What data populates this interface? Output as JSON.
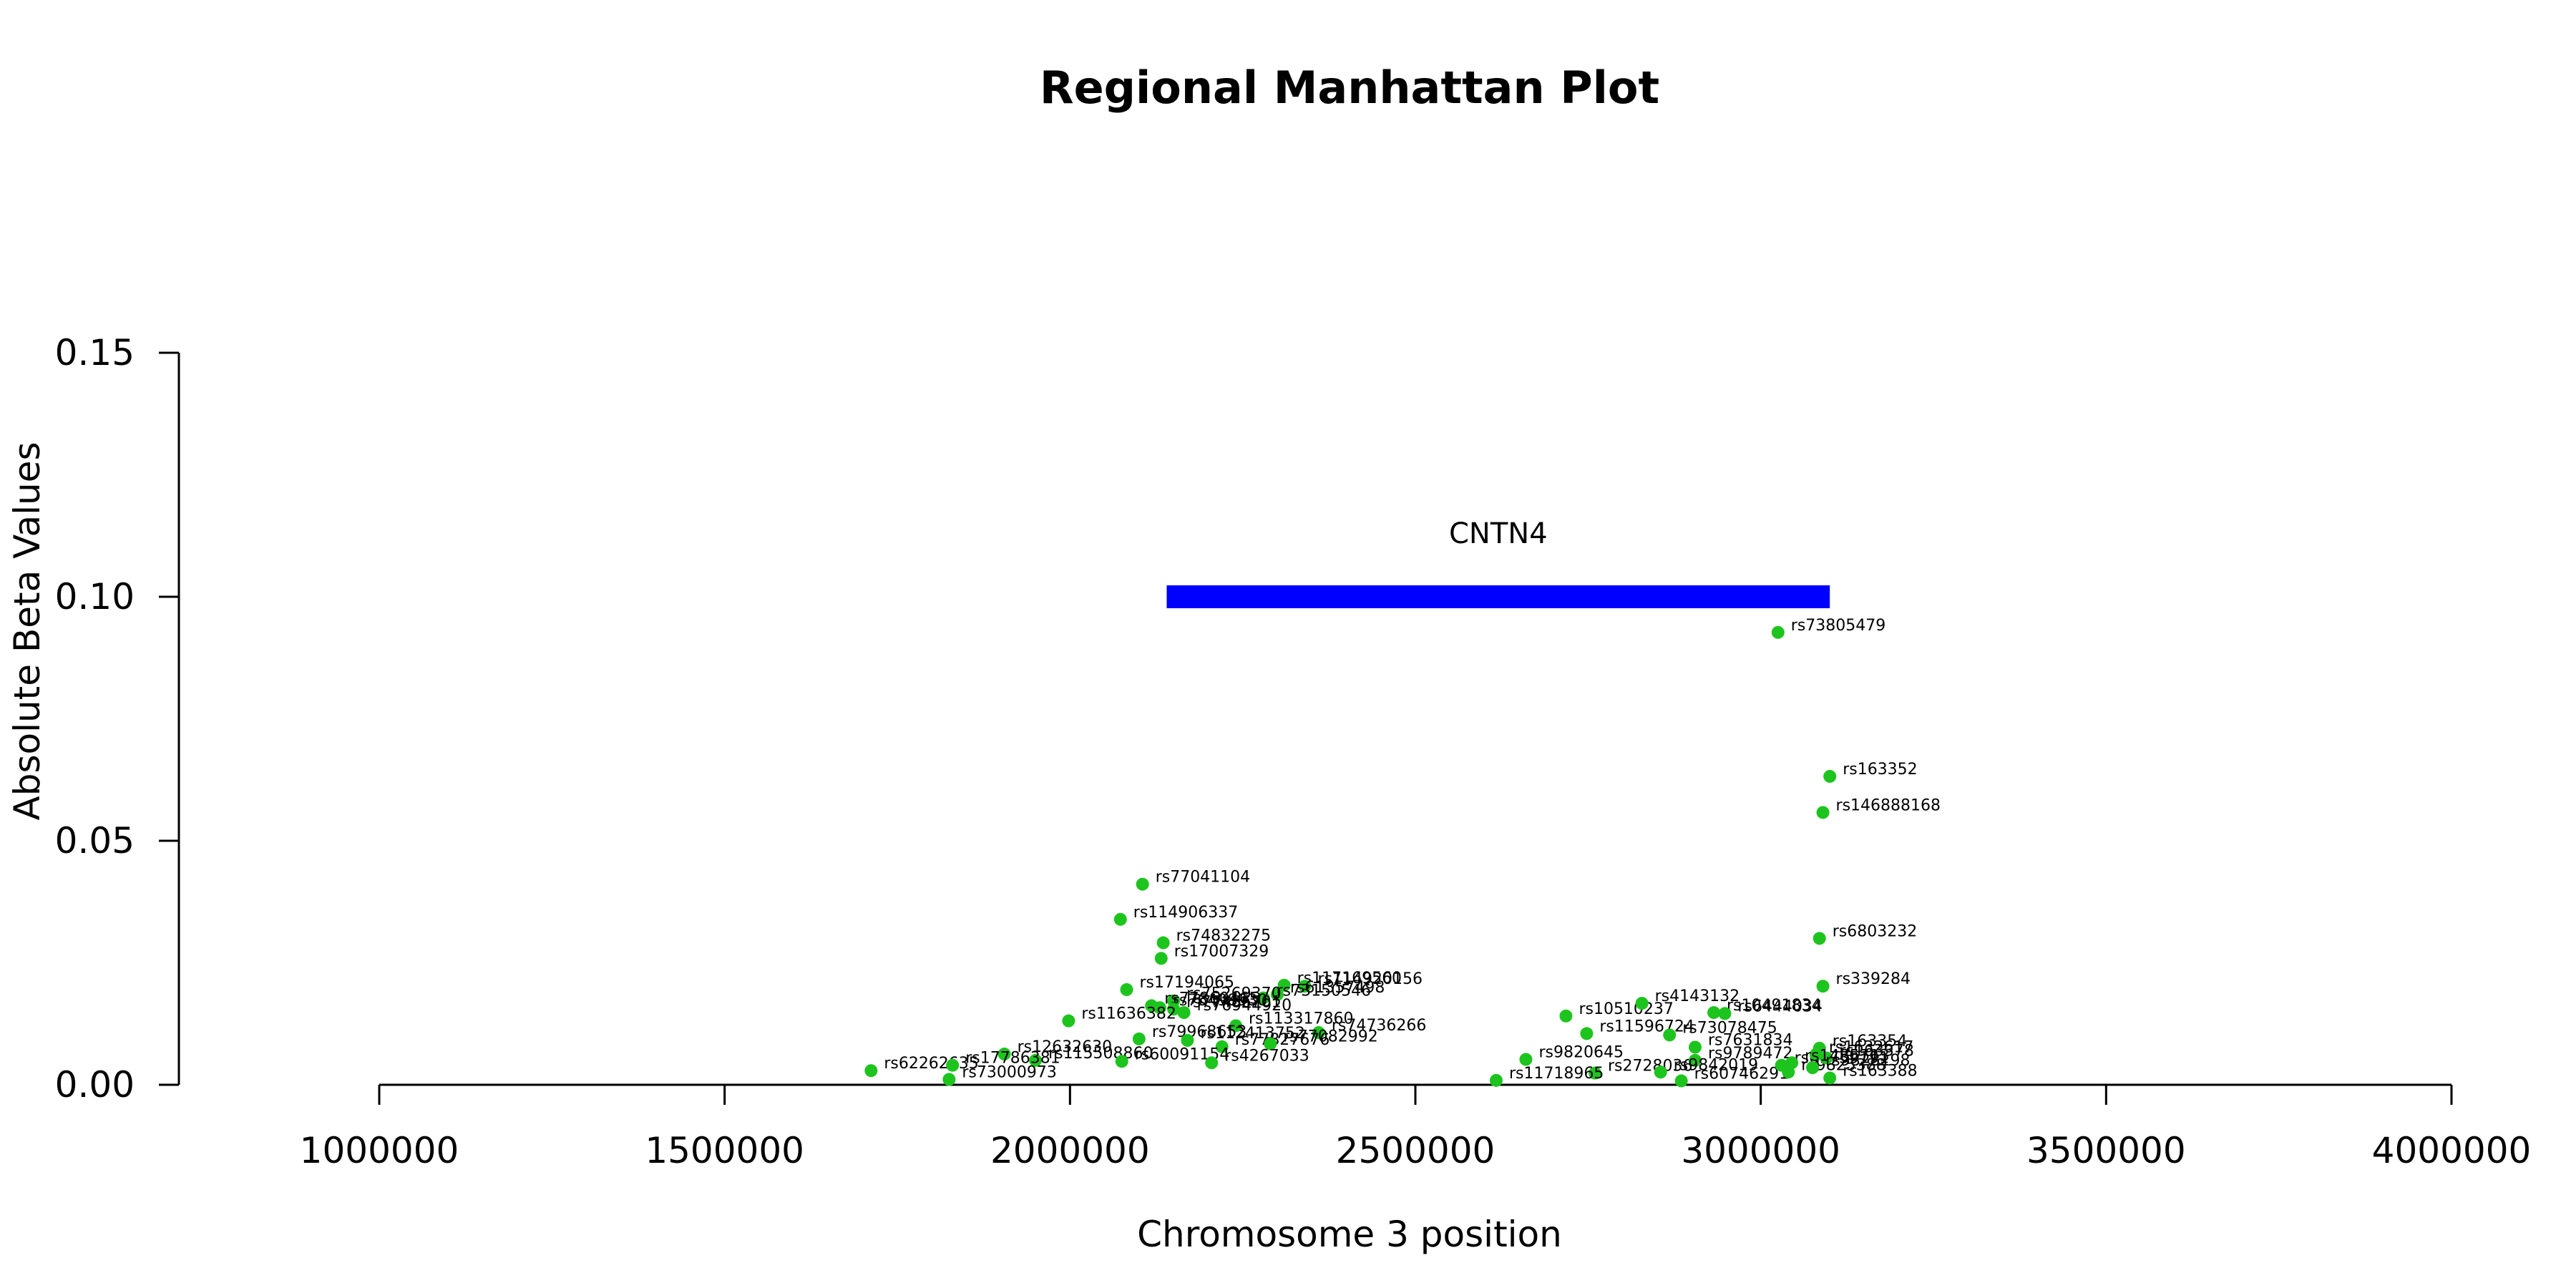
{
  "chart_data": {
    "type": "scatter",
    "title": "Regional Manhattan Plot",
    "xlabel": "Chromosome 3 position",
    "ylabel": "Absolute Beta Values",
    "xlim": [
      1000000,
      4000000
    ],
    "ylim": [
      0,
      0.15
    ],
    "x_ticks": [
      "1000000",
      "1500000",
      "2000000",
      "2500000",
      "3000000",
      "3500000",
      "4000000"
    ],
    "y_ticks": [
      "0.00",
      "0.05",
      "0.10",
      "0.15"
    ],
    "point_color": "#1ec41e",
    "gene_color": "#0000ff",
    "gene": {
      "name": "CNTN4",
      "start": 2140000,
      "end": 3100000,
      "y": 0.1
    },
    "points": [
      {
        "id": "rs73805479",
        "x": 3025000,
        "y": 0.0927
      },
      {
        "id": "rs163352",
        "x": 3100000,
        "y": 0.0632
      },
      {
        "id": "rs146888168",
        "x": 3090000,
        "y": 0.0558
      },
      {
        "id": "rs77041104",
        "x": 2105000,
        "y": 0.0411
      },
      {
        "id": "rs114906337",
        "x": 2073000,
        "y": 0.0339
      },
      {
        "id": "rs74832275",
        "x": 2135000,
        "y": 0.0291
      },
      {
        "id": "rs17007329",
        "x": 2132000,
        "y": 0.0259
      },
      {
        "id": "rs6803232",
        "x": 3085000,
        "y": 0.03
      },
      {
        "id": "rs339284",
        "x": 3090000,
        "y": 0.0202
      },
      {
        "id": "rs17194065",
        "x": 2082000,
        "y": 0.0195
      },
      {
        "id": "rs117169560",
        "x": 2310000,
        "y": 0.0204
      },
      {
        "id": "rs114920156",
        "x": 2340000,
        "y": 0.0202
      },
      {
        "id": "rs61357498",
        "x": 2300000,
        "y": 0.0185
      },
      {
        "id": "rs73150546",
        "x": 2280000,
        "y": 0.0178
      },
      {
        "id": "rs75269370",
        "x": 2150000,
        "y": 0.0172
      },
      {
        "id": "rs77860465",
        "x": 2118000,
        "y": 0.0162
      },
      {
        "id": "rs76498930",
        "x": 2130000,
        "y": 0.0158
      },
      {
        "id": "rs77486701",
        "x": 2150000,
        "y": 0.0155
      },
      {
        "id": "rs11636382",
        "x": 1998000,
        "y": 0.0131
      },
      {
        "id": "rs76944920",
        "x": 2165000,
        "y": 0.0148
      },
      {
        "id": "rs113317860",
        "x": 2240000,
        "y": 0.0121
      },
      {
        "id": "rs74736266",
        "x": 2360000,
        "y": 0.0107
      },
      {
        "id": "rs79968653",
        "x": 2100000,
        "y": 0.0094
      },
      {
        "id": "rs112413752",
        "x": 2170000,
        "y": 0.0091
      },
      {
        "id": "rs77827676",
        "x": 2220000,
        "y": 0.0078
      },
      {
        "id": "rs77082992",
        "x": 2290000,
        "y": 0.0084
      },
      {
        "id": "rs12632630",
        "x": 1905000,
        "y": 0.0063
      },
      {
        "id": "rs115508860",
        "x": 1950000,
        "y": 0.005
      },
      {
        "id": "rs60091154",
        "x": 2075000,
        "y": 0.0048
      },
      {
        "id": "rs4267033",
        "x": 2205000,
        "y": 0.0045
      },
      {
        "id": "rs62262635",
        "x": 1712000,
        "y": 0.0029
      },
      {
        "id": "rs17786381",
        "x": 1830000,
        "y": 0.004
      },
      {
        "id": "rs73000973",
        "x": 1825000,
        "y": 0.0011
      },
      {
        "id": "rs10510237",
        "x": 2718000,
        "y": 0.0141
      },
      {
        "id": "rs4143132",
        "x": 2828000,
        "y": 0.0167
      },
      {
        "id": "rs11596724",
        "x": 2748000,
        "y": 0.0105
      },
      {
        "id": "rs73078475",
        "x": 2868000,
        "y": 0.0102
      },
      {
        "id": "rs10491834",
        "x": 2932000,
        "y": 0.0148
      },
      {
        "id": "rs6444034",
        "x": 2948000,
        "y": 0.0146
      },
      {
        "id": "rs9820645",
        "x": 2660000,
        "y": 0.0052
      },
      {
        "id": "rs7631834",
        "x": 2905000,
        "y": 0.0077
      },
      {
        "id": "rs2728036",
        "x": 2760000,
        "y": 0.0024
      },
      {
        "id": "rs9789472",
        "x": 2905000,
        "y": 0.005
      },
      {
        "id": "rs9842019",
        "x": 2855000,
        "y": 0.0026
      },
      {
        "id": "rs11718965",
        "x": 2617000,
        "y": 0.0009
      },
      {
        "id": "rs60746291",
        "x": 2885000,
        "y": 0.0008
      },
      {
        "id": "rs61739191",
        "x": 3030000,
        "y": 0.004
      },
      {
        "id": "rs9825388",
        "x": 3040000,
        "y": 0.0026
      },
      {
        "id": "rs163354",
        "x": 3085000,
        "y": 0.0075
      },
      {
        "id": "rs1632617",
        "x": 3080000,
        "y": 0.0062
      },
      {
        "id": "rs163378",
        "x": 3095000,
        "y": 0.0055
      },
      {
        "id": "rs1485713",
        "x": 3045000,
        "y": 0.0045
      },
      {
        "id": "rs9828198",
        "x": 3075000,
        "y": 0.0035
      },
      {
        "id": "rs163388",
        "x": 3100000,
        "y": 0.0014
      }
    ]
  }
}
